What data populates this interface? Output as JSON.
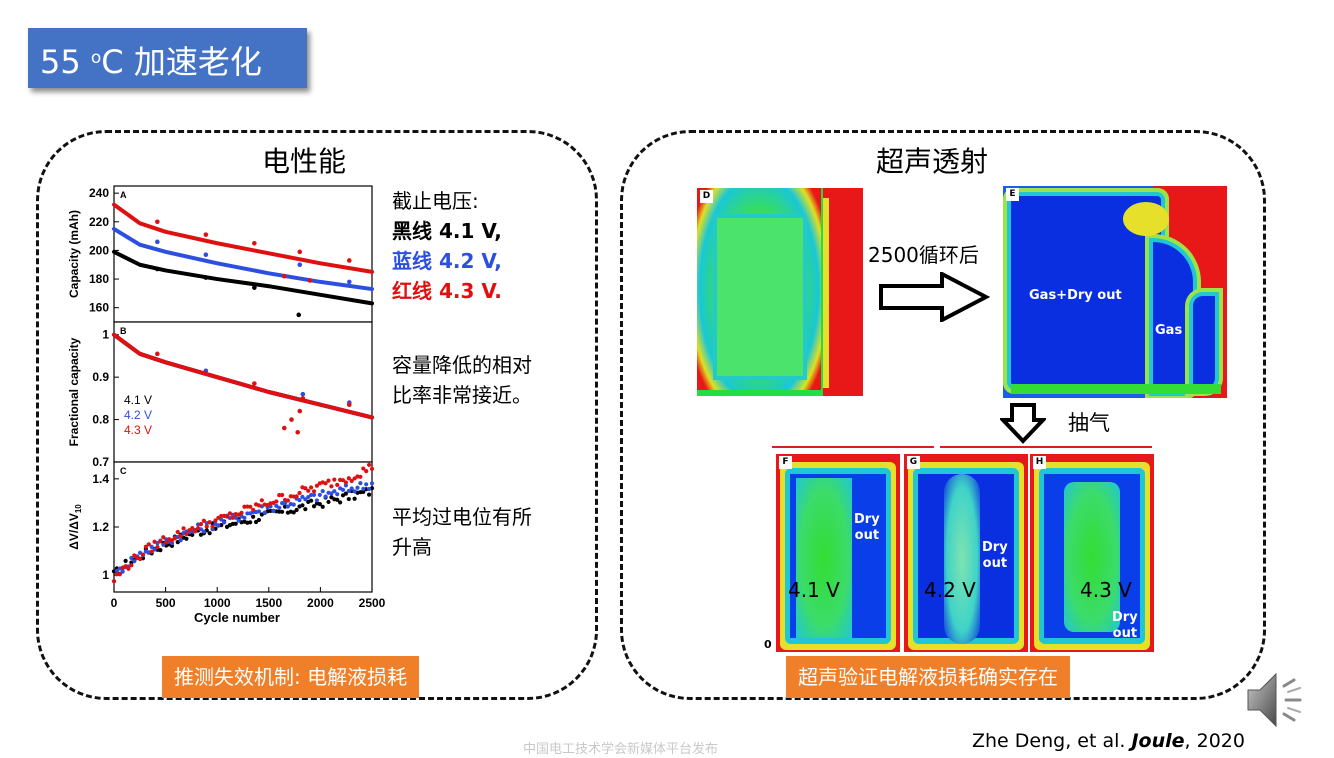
{
  "slide": {
    "title_main": "55 ",
    "title_degree": "o",
    "title_rest": "C 加速老化"
  },
  "left_panel": {
    "heading": "电性能",
    "voltage_notes": {
      "header": "截止电压:",
      "black": "黑线 4.1 V,",
      "blue": "蓝线 4.2 V,",
      "red": "红线 4.3 V."
    },
    "capacity_note": [
      "容量降低的相对",
      "比率非常接近。"
    ],
    "overpotential_note": [
      "平均过电位有所",
      "升高"
    ],
    "conclusion_tag": "推测失效机制: 电解液损耗"
  },
  "right_panel": {
    "heading": "超声透射",
    "cycles_label": "2500循环后",
    "degas_label": "抽气",
    "scan_letters": [
      "D",
      "E",
      "F",
      "G",
      "H"
    ],
    "scan_e_labels": [
      "Gas+Dry out",
      "Gas"
    ],
    "dry_out_label": [
      "Dry",
      "out"
    ],
    "voltage_labels": [
      "4.1 V",
      "4.2 V",
      "4.3 V"
    ],
    "zero_label": "0",
    "conclusion_tag": "超声验证电解液损耗确实存在"
  },
  "footer": "中国电工技术学会新媒体平台发布",
  "citation": {
    "authors": "Zhe Deng, et al. ",
    "journal": "Joule",
    "year": ", 2020"
  },
  "colors": {
    "title_bg": "#4472c4",
    "tag_bg": "#f07f2a",
    "series_black": "#000000",
    "series_blue": "#2d4fe0",
    "series_red": "#e01010"
  },
  "chart_data": [
    {
      "type": "line",
      "panel_letter": "A",
      "ylabel": "Capacity (mAh)",
      "ylim": [
        150,
        245
      ],
      "yticks": [
        160,
        180,
        200,
        220,
        240
      ],
      "xlim": [
        0,
        2500
      ],
      "series": [
        {
          "color": "#000000",
          "x": [
            0,
            250,
            500,
            1000,
            1500,
            2000,
            2500
          ],
          "y": [
            199,
            190,
            186,
            180,
            175,
            169,
            163
          ]
        },
        {
          "color": "#2d4fe0",
          "x": [
            0,
            250,
            500,
            1000,
            1500,
            2000,
            2500
          ],
          "y": [
            215,
            204,
            199,
            191,
            184,
            178,
            173
          ]
        },
        {
          "color": "#e01010",
          "x": [
            0,
            250,
            500,
            1000,
            1500,
            2000,
            2500
          ],
          "y": [
            232,
            219,
            213,
            205,
            198,
            191,
            185
          ]
        }
      ],
      "points": [
        {
          "color": "#e01010",
          "x": 420,
          "y": 220
        },
        {
          "color": "#e01010",
          "x": 890,
          "y": 211
        },
        {
          "color": "#e01010",
          "x": 1360,
          "y": 205
        },
        {
          "color": "#e01010",
          "x": 1800,
          "y": 199
        },
        {
          "color": "#e01010",
          "x": 2280,
          "y": 193
        },
        {
          "color": "#2d4fe0",
          "x": 420,
          "y": 206
        },
        {
          "color": "#2d4fe0",
          "x": 890,
          "y": 197
        },
        {
          "color": "#2d4fe0",
          "x": 1800,
          "y": 190
        },
        {
          "color": "#2d4fe0",
          "x": 2280,
          "y": 178
        },
        {
          "color": "#000000",
          "x": 420,
          "y": 187
        },
        {
          "color": "#000000",
          "x": 890,
          "y": 181
        },
        {
          "color": "#000000",
          "x": 1360,
          "y": 174
        },
        {
          "color": "#000000",
          "x": 1790,
          "y": 155
        },
        {
          "color": "#e01010",
          "x": 1650,
          "y": 182
        },
        {
          "color": "#e01010",
          "x": 1900,
          "y": 179
        }
      ]
    },
    {
      "type": "line",
      "panel_letter": "B",
      "ylabel": "Fractional capacity",
      "ylim": [
        0.7,
        1.03
      ],
      "yticks": [
        "1",
        "0.9",
        "0.8",
        "0.7"
      ],
      "xlim": [
        0,
        2500
      ],
      "legend": [
        {
          "label": "4.1 V",
          "color": "#000000"
        },
        {
          "label": "4.2 V",
          "color": "#2d4fe0"
        },
        {
          "label": "4.3 V",
          "color": "#e01010"
        }
      ],
      "legend_position": "bottom-left",
      "series": [
        {
          "color": "#000000",
          "x": [
            0,
            250,
            500,
            1000,
            1500,
            2000,
            2500
          ],
          "y": [
            1.0,
            0.955,
            0.935,
            0.9,
            0.865,
            0.835,
            0.805
          ]
        },
        {
          "color": "#2d4fe0",
          "x": [
            0,
            250,
            500,
            1000,
            1500,
            2000,
            2500
          ],
          "y": [
            1.0,
            0.955,
            0.935,
            0.9,
            0.865,
            0.835,
            0.805
          ]
        },
        {
          "color": "#e01010",
          "x": [
            0,
            250,
            500,
            1000,
            1500,
            2000,
            2500
          ],
          "y": [
            1.0,
            0.955,
            0.935,
            0.9,
            0.865,
            0.835,
            0.805
          ]
        }
      ],
      "points": [
        {
          "color": "#e01010",
          "x": 420,
          "y": 0.955
        },
        {
          "color": "#2d4fe0",
          "x": 890,
          "y": 0.915
        },
        {
          "color": "#e01010",
          "x": 880,
          "y": 0.91
        },
        {
          "color": "#e01010",
          "x": 1360,
          "y": 0.885
        },
        {
          "color": "#2d4fe0",
          "x": 1830,
          "y": 0.86
        },
        {
          "color": "#e01010",
          "x": 1830,
          "y": 0.85
        },
        {
          "color": "#e01010",
          "x": 1650,
          "y": 0.78
        },
        {
          "color": "#e01010",
          "x": 1720,
          "y": 0.8
        },
        {
          "color": "#e01010",
          "x": 1780,
          "y": 0.77
        },
        {
          "color": "#e01010",
          "x": 1800,
          "y": 0.82
        },
        {
          "color": "#2d4fe0",
          "x": 2280,
          "y": 0.84
        },
        {
          "color": "#e01010",
          "x": 2280,
          "y": 0.835
        }
      ]
    },
    {
      "type": "scatter",
      "panel_letter": "C",
      "ylabel": "ΔV/ΔV",
      "ylabel_sub": "10",
      "xlabel": "Cycle number",
      "ylim": [
        0.93,
        1.47
      ],
      "yticks": [
        "1",
        "1.2",
        "1.4"
      ],
      "xlim": [
        0,
        2500
      ],
      "xticks": [
        "0",
        "500",
        "1000",
        "1500",
        "2000",
        "2500"
      ],
      "series": [
        {
          "color": "#000000",
          "x": [
            0,
            100,
            300,
            500,
            800,
            1100,
            1400,
            1700,
            2000,
            2300,
            2500
          ],
          "y": [
            1.0,
            1.04,
            1.09,
            1.13,
            1.18,
            1.21,
            1.24,
            1.27,
            1.3,
            1.33,
            1.35
          ]
        },
        {
          "color": "#2d4fe0",
          "x": [
            0,
            100,
            300,
            500,
            800,
            1100,
            1400,
            1700,
            2000,
            2300,
            2500
          ],
          "y": [
            0.99,
            1.04,
            1.1,
            1.14,
            1.19,
            1.23,
            1.27,
            1.3,
            1.33,
            1.36,
            1.38
          ]
        },
        {
          "color": "#e01010",
          "x": [
            0,
            100,
            300,
            500,
            800,
            1100,
            1400,
            1700,
            2000,
            2300,
            2500
          ],
          "y": [
            0.98,
            1.03,
            1.1,
            1.15,
            1.2,
            1.24,
            1.29,
            1.33,
            1.37,
            1.41,
            1.45
          ]
        }
      ]
    }
  ]
}
